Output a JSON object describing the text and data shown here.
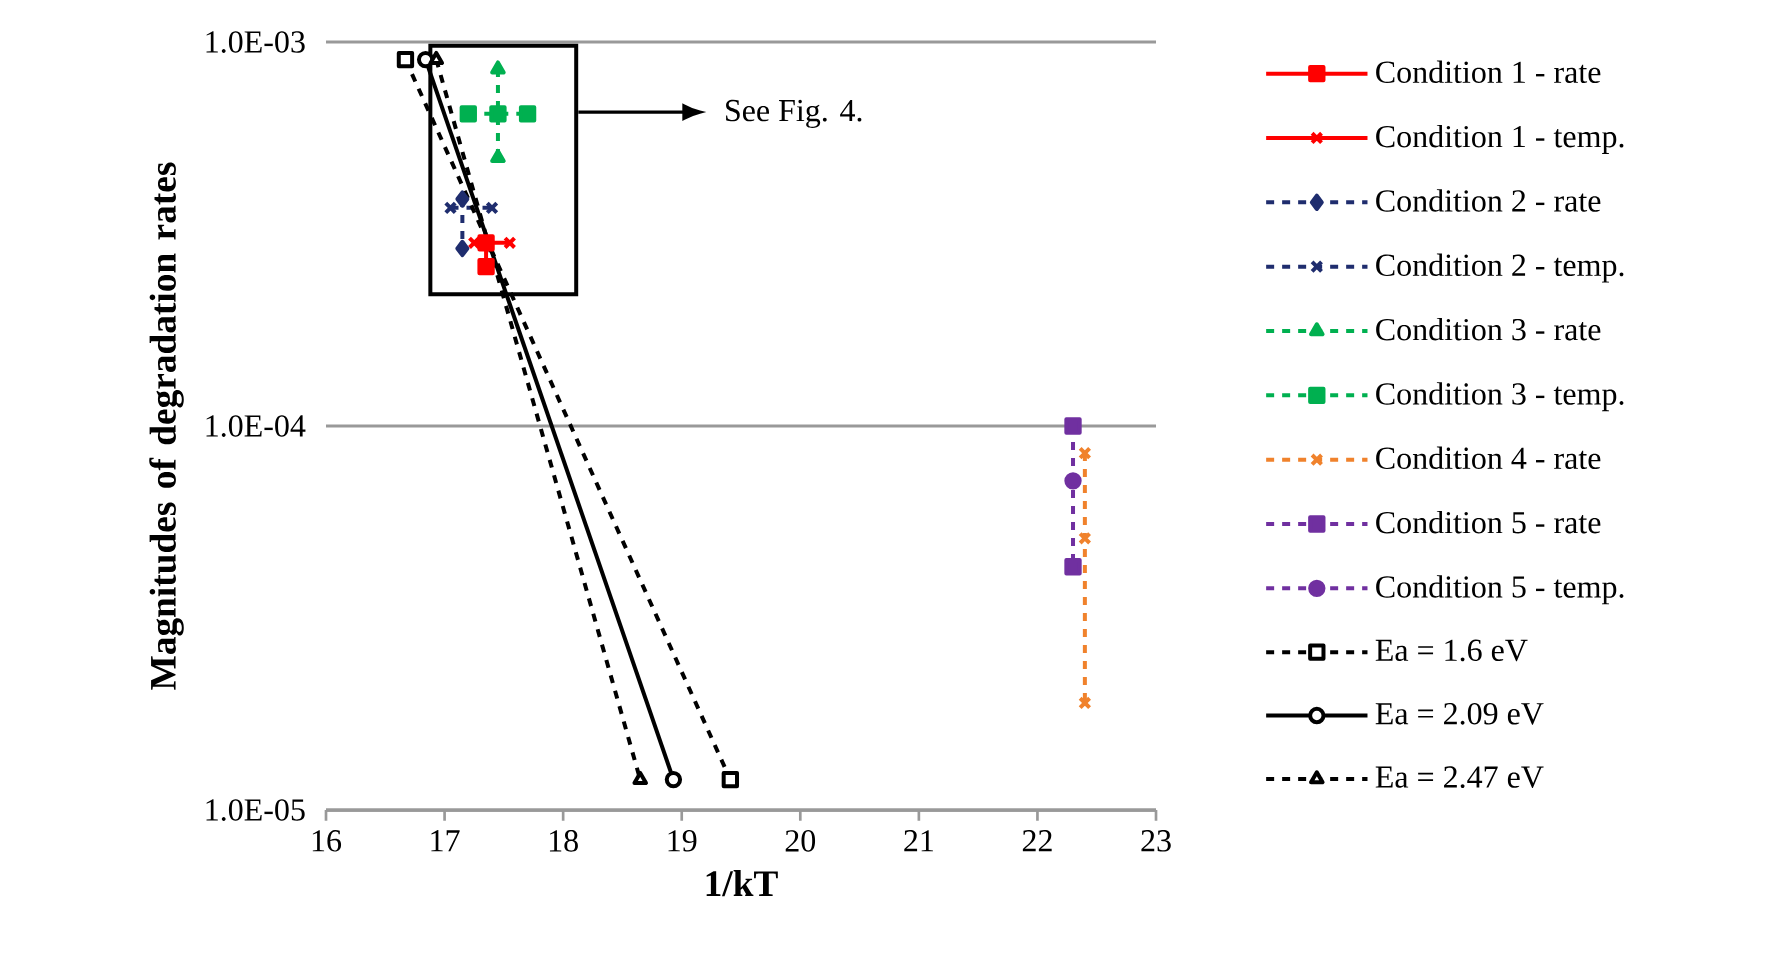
{
  "chart_data": {
    "type": "line",
    "xlabel": "1/kT",
    "ylabel": "Magnitudes of degradation rates",
    "log": "y",
    "grid": "y",
    "legend": "right",
    "xlim": [
      16,
      23
    ],
    "xticks": [
      16,
      17,
      18,
      19,
      20,
      21,
      22,
      23
    ],
    "ylim": [
      1e-05,
      0.001
    ],
    "yticks": [
      {
        "value": 1e-05,
        "label": "1.0E-05"
      },
      {
        "value": 0.0001,
        "label": "1.0E-04"
      },
      {
        "value": 0.001,
        "label": "1.0E-03"
      }
    ],
    "annotations": [
      "See Fig. 4."
    ],
    "series": [
      {
        "name": "Condition 1 - rate",
        "color": "#ff0000",
        "marker": "square",
        "line_style": "solid",
        "x": [
          17.35,
          17.35
        ],
        "values": [
          0.0003,
          0.00026
        ]
      },
      {
        "name": "Condition 1 - temp.",
        "color": "#ff0000",
        "marker": "cross",
        "line_style": "solid",
        "x": [
          17.25,
          17.55
        ],
        "values": [
          0.0003,
          0.0003
        ]
      },
      {
        "name": "Condition 2 - rate",
        "color": "#1f2d6e",
        "marker": "diamond",
        "line_style": "dashed",
        "x": [
          17.15,
          17.15
        ],
        "values": [
          0.00039,
          0.00029
        ]
      },
      {
        "name": "Condition 2 - temp.",
        "color": "#1f2d6e",
        "marker": "cross",
        "line_style": "dashed",
        "x": [
          17.05,
          17.4
        ],
        "values": [
          0.00037,
          0.00037
        ]
      },
      {
        "name": "Condition 3 - rate",
        "color": "#00b050",
        "marker": "triangle",
        "line_style": "dashed",
        "x": [
          17.45,
          17.45
        ],
        "values": [
          0.00085,
          0.0005
        ]
      },
      {
        "name": "Condition 3 - temp.",
        "color": "#00b050",
        "marker": "square",
        "line_style": "dashed",
        "x": [
          17.2,
          17.45,
          17.7
        ],
        "values": [
          0.00065,
          0.00065,
          0.00065
        ]
      },
      {
        "name": "Condition 4 - rate",
        "color": "#f0822c",
        "marker": "cross",
        "line_style": "dashed",
        "x": [
          22.4,
          22.4,
          22.4
        ],
        "values": [
          8.5e-05,
          5.1e-05,
          1.9e-05
        ]
      },
      {
        "name": "Condition 5 - rate",
        "color": "#7030a0",
        "marker": "square",
        "line_style": "dashed",
        "x": [
          22.3,
          22.3
        ],
        "values": [
          0.0001,
          4.3e-05
        ]
      },
      {
        "name": "Condition 5 - temp.",
        "color": "#7030a0",
        "marker": "circle",
        "line_style": "dashed",
        "x": [
          22.3
        ],
        "values": [
          7.2e-05
        ]
      },
      {
        "name": "Ea = 1.6 eV",
        "color": "#000000",
        "marker": "square",
        "line_style": "dashed",
        "x": [
          16.67,
          19.41
        ],
        "values": [
          0.0009,
          1.2e-05
        ]
      },
      {
        "name": "Ea = 2.09 eV",
        "color": "#000000",
        "marker": "circle",
        "line_style": "solid",
        "x": [
          16.84,
          18.93
        ],
        "values": [
          0.0009,
          1.2e-05
        ]
      },
      {
        "name": "Ea = 2.47 eV",
        "color": "#000000",
        "marker": "triangle",
        "line_style": "dashed",
        "x": [
          16.93,
          18.65
        ],
        "values": [
          0.0009,
          1.2e-05
        ]
      }
    ]
  }
}
